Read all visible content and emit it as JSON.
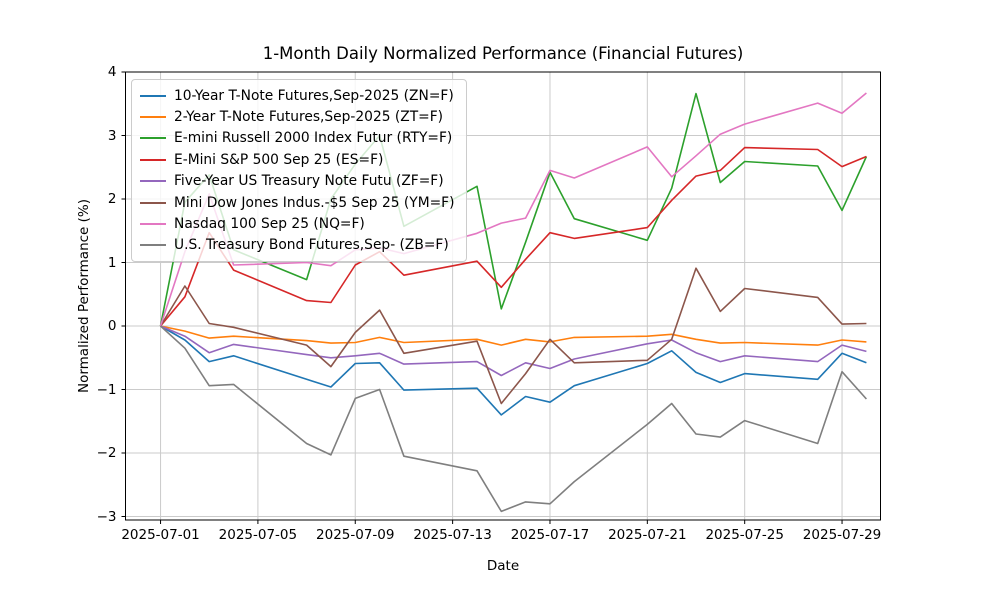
{
  "title": "1-Month Daily Normalized Performance (Financial Futures)",
  "chart_data": {
    "type": "line",
    "title": "1-Month Daily Normalized Performance (Financial Futures)",
    "xlabel": "Date",
    "ylabel": "Normalized Performance (%)",
    "grid": true,
    "legend_position": "upper left",
    "ylim": [
      -3.055,
      4.0
    ],
    "xlim_days_from_jul1": [
      -1.44,
      29.58
    ],
    "x": [
      "2025-07-01",
      "2025-07-02",
      "2025-07-03",
      "2025-07-04",
      "2025-07-07",
      "2025-07-08",
      "2025-07-09",
      "2025-07-10",
      "2025-07-11",
      "2025-07-14",
      "2025-07-15",
      "2025-07-16",
      "2025-07-17",
      "2025-07-18",
      "2025-07-21",
      "2025-07-22",
      "2025-07-23",
      "2025-07-24",
      "2025-07-25",
      "2025-07-28",
      "2025-07-29",
      "2025-07-30"
    ],
    "x_tick_dates": [
      "2025-07-01",
      "2025-07-05",
      "2025-07-09",
      "2025-07-13",
      "2025-07-17",
      "2025-07-21",
      "2025-07-25",
      "2025-07-29"
    ],
    "y_ticks": [
      {
        "v": -3,
        "label": "−3"
      },
      {
        "v": -2,
        "label": "−2"
      },
      {
        "v": -1,
        "label": "−1"
      },
      {
        "v": 0,
        "label": "0"
      },
      {
        "v": 1,
        "label": "1"
      },
      {
        "v": 2,
        "label": "2"
      },
      {
        "v": 3,
        "label": "3"
      },
      {
        "v": 4,
        "label": "4"
      }
    ],
    "series": [
      {
        "name": "10-Year T-Note Futures,Sep-2025 (ZN=F)",
        "color": "#1f77b4",
        "values": [
          0,
          -0.22,
          -0.56,
          -0.47,
          -0.84,
          -0.96,
          -0.59,
          -0.58,
          -1.01,
          -0.98,
          -1.4,
          -1.11,
          -1.2,
          -0.94,
          -0.59,
          -0.39,
          -0.73,
          -0.89,
          -0.75,
          -0.84,
          -0.43,
          -0.58
        ]
      },
      {
        "name": "2-Year T-Note Futures,Sep-2025 (ZT=F)",
        "color": "#ff7f0e",
        "values": [
          0,
          -0.08,
          -0.19,
          -0.16,
          -0.23,
          -0.27,
          -0.26,
          -0.18,
          -0.26,
          -0.21,
          -0.3,
          -0.21,
          -0.25,
          -0.18,
          -0.16,
          -0.13,
          -0.21,
          -0.27,
          -0.26,
          -0.3,
          -0.22,
          -0.25
        ]
      },
      {
        "name": "E-mini Russell 2000 Index Futur (RTY=F)",
        "color": "#2ca02c",
        "values": [
          0,
          1.95,
          2.38,
          1.2,
          0.73,
          2.0,
          2.55,
          3.0,
          1.57,
          2.2,
          0.27,
          1.32,
          2.42,
          1.69,
          1.35,
          2.17,
          3.66,
          2.26,
          2.59,
          2.52,
          1.82,
          2.67
        ]
      },
      {
        "name": "E-Mini S&P 500 Sep 25 (ES=F)",
        "color": "#d62728",
        "values": [
          0,
          0.46,
          1.47,
          0.88,
          0.4,
          0.37,
          0.96,
          1.17,
          0.8,
          1.02,
          0.61,
          1.05,
          1.47,
          1.38,
          1.55,
          1.98,
          2.36,
          2.45,
          2.81,
          2.78,
          2.51,
          2.67
        ]
      },
      {
        "name": "Five-Year US Treasury Note Futu (ZF=F)",
        "color": "#9467bd",
        "values": [
          0,
          -0.16,
          -0.42,
          -0.29,
          -0.45,
          -0.5,
          -0.47,
          -0.43,
          -0.6,
          -0.56,
          -0.78,
          -0.58,
          -0.67,
          -0.52,
          -0.28,
          -0.22,
          -0.42,
          -0.56,
          -0.47,
          -0.56,
          -0.3,
          -0.4
        ]
      },
      {
        "name": "Mini Dow Jones Indus.-$5 Sep 25 (YM=F)",
        "color": "#8c564b",
        "values": [
          0,
          0.63,
          0.04,
          -0.02,
          -0.3,
          -0.64,
          -0.1,
          0.25,
          -0.43,
          -0.24,
          -1.22,
          -0.75,
          -0.21,
          -0.58,
          -0.54,
          -0.21,
          0.91,
          0.23,
          0.59,
          0.45,
          0.03,
          0.04
        ]
      },
      {
        "name": "Nasdaq 100 Sep 25 (NQ=F)",
        "color": "#e377c2",
        "values": [
          0,
          1.17,
          2.08,
          0.96,
          1.0,
          0.95,
          1.2,
          1.23,
          1.14,
          1.46,
          1.62,
          1.7,
          2.45,
          2.33,
          2.82,
          2.35,
          2.68,
          3.02,
          3.18,
          3.51,
          3.35,
          3.67
        ]
      },
      {
        "name": "U.S. Treasury Bond Futures,Sep- (ZB=F)",
        "color": "#7f7f7f",
        "values": [
          0,
          -0.35,
          -0.94,
          -0.92,
          -1.85,
          -2.03,
          -1.14,
          -1.0,
          -2.05,
          -2.28,
          -2.92,
          -2.77,
          -2.8,
          -2.45,
          -1.55,
          -1.22,
          -1.7,
          -1.75,
          -1.49,
          -1.85,
          -0.72,
          -1.15
        ]
      }
    ]
  }
}
